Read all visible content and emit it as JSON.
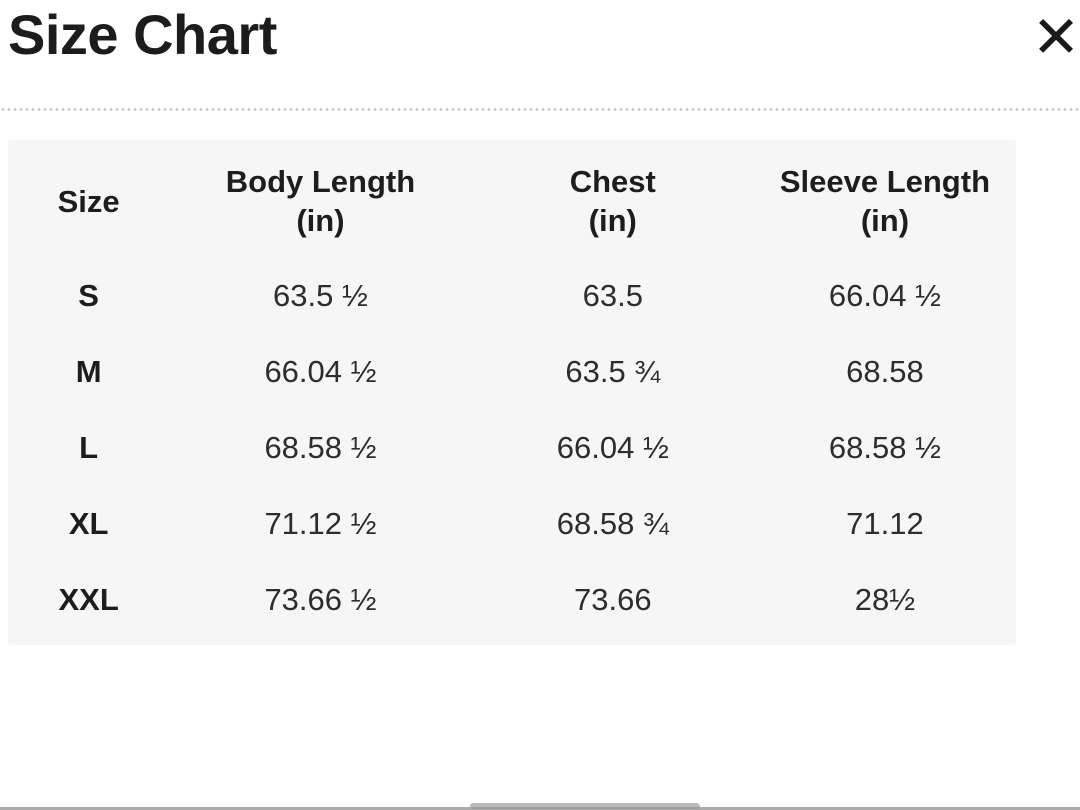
{
  "modal": {
    "title": "Size Chart",
    "close_icon_glyph": "✕"
  },
  "table": {
    "columns": [
      {
        "label": "Size",
        "unit": ""
      },
      {
        "label": "Body Length",
        "unit": "(in)"
      },
      {
        "label": "Chest",
        "unit": "(in)"
      },
      {
        "label": "Sleeve Length",
        "unit": "(in)"
      }
    ],
    "rows": [
      {
        "size": "S",
        "body_length": "63.5 ½",
        "chest": "63.5",
        "sleeve_length": "66.04 ½"
      },
      {
        "size": "M",
        "body_length": "66.04 ½",
        "chest": "63.5 ¾",
        "sleeve_length": "68.58"
      },
      {
        "size": "L",
        "body_length": "68.58 ½",
        "chest": "66.04 ½",
        "sleeve_length": "68.58 ½"
      },
      {
        "size": "XL",
        "body_length": "71.12 ½",
        "chest": "68.58 ¾",
        "sleeve_length": "71.12"
      },
      {
        "size": "XXL",
        "body_length": "73.66 ½",
        "chest": "73.66",
        "sleeve_length": "28½"
      }
    ]
  },
  "colors": {
    "title_text": "#1c1c1e",
    "header_text": "#1d1d1f",
    "value_text": "#2d2d2f",
    "table_background": "#f6f6f7",
    "dotted_divider": "#c9c9c9",
    "bottom_line": "#ababab"
  }
}
